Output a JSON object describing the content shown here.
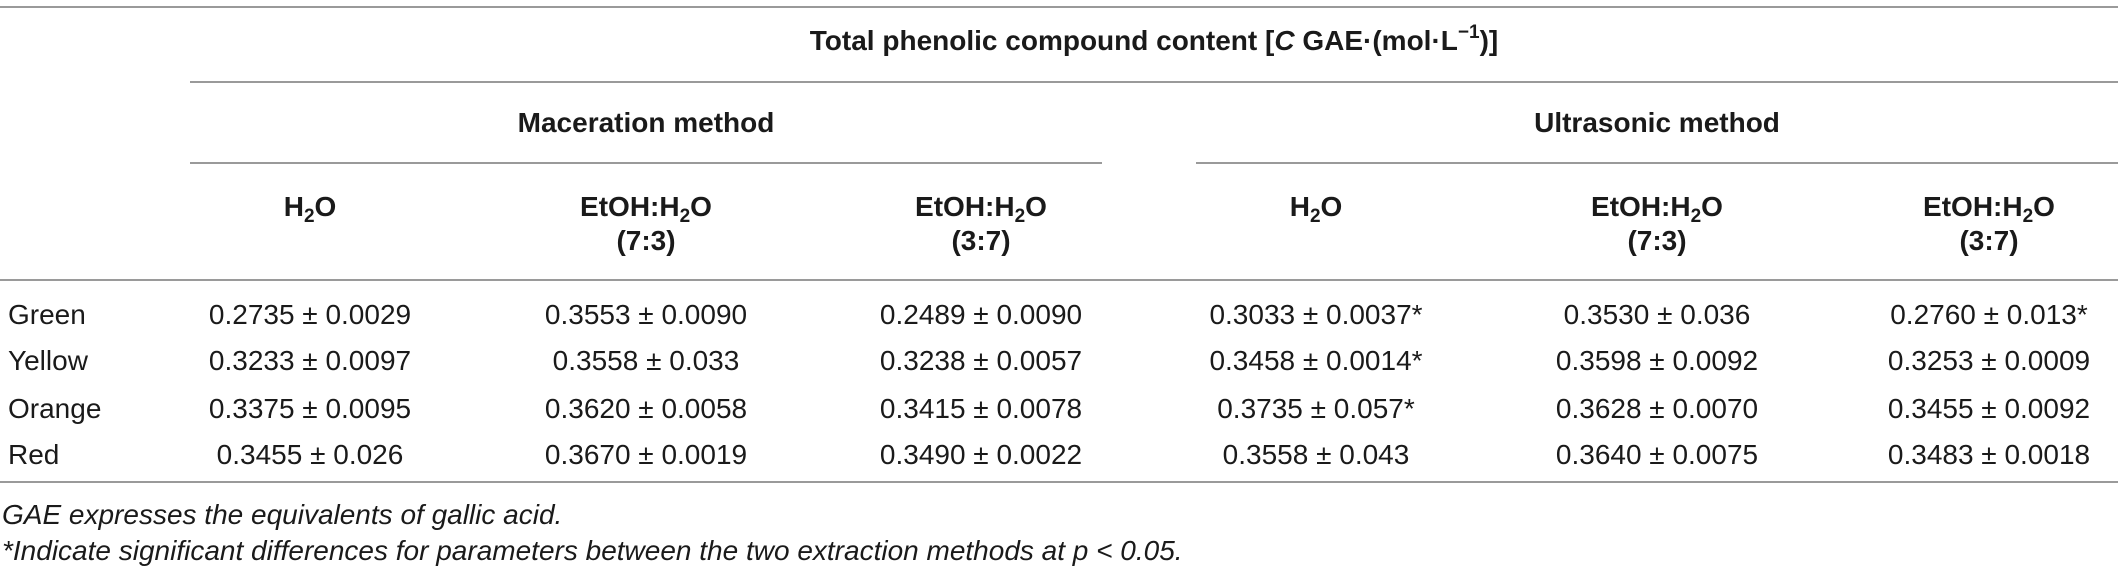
{
  "table": {
    "title": {
      "prefix": "Total phenolic compound content [",
      "var": "C",
      "mid": " GAE·(mol·L",
      "sup": "−1",
      "suffix": ")]"
    },
    "groups": [
      {
        "label": "Maceration method"
      },
      {
        "label": "Ultrasonic method"
      }
    ],
    "columns": [
      {
        "a": "H",
        "sub": "2",
        "b": "O",
        "line2": ""
      },
      {
        "a": "EtOH:H",
        "sub": "2",
        "b": "O",
        "line2": "(7:3)"
      },
      {
        "a": "EtOH:H",
        "sub": "2",
        "b": "O",
        "line2": "(3:7)"
      },
      {
        "a": "H",
        "sub": "2",
        "b": "O",
        "line2": ""
      },
      {
        "a": "EtOH:H",
        "sub": "2",
        "b": "O",
        "line2": "(7:3)"
      },
      {
        "a": "EtOH:H",
        "sub": "2",
        "b": "O",
        "line2": "(3:7)"
      }
    ],
    "rows": [
      {
        "label": "Green",
        "cells": [
          "0.2735 ± 0.0029",
          "0.3553 ± 0.0090",
          "0.2489 ± 0.0090",
          "0.3033 ± 0.0037*",
          "0.3530 ± 0.036",
          "0.2760 ± 0.013*"
        ]
      },
      {
        "label": "Yellow",
        "cells": [
          "0.3233 ± 0.0097",
          "0.3558 ± 0.033",
          "0.3238 ± 0.0057",
          "0.3458 ± 0.0014*",
          "0.3598 ± 0.0092",
          "0.3253 ± 0.0009"
        ]
      },
      {
        "label": "Orange",
        "cells": [
          "0.3375 ± 0.0095",
          "0.3620 ± 0.0058",
          "0.3415 ± 0.0078",
          "0.3735 ± 0.057*",
          "0.3628 ± 0.0070",
          "0.3455 ± 0.0092"
        ]
      },
      {
        "label": "Red",
        "cells": [
          "0.3455 ± 0.026",
          "0.3670 ± 0.0019",
          "0.3490 ± 0.0022",
          "0.3558 ± 0.043",
          "0.3640 ± 0.0075",
          "0.3483 ± 0.0018"
        ]
      }
    ],
    "footnotes": [
      "GAE expresses the equivalents of gallic acid.",
      "*Indicate significant differences for parameters between the two extraction methods at p < 0.05."
    ]
  }
}
